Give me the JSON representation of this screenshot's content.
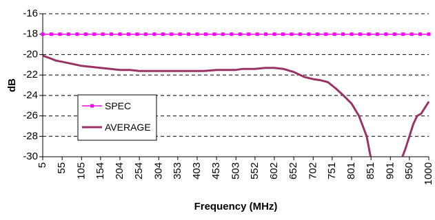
{
  "chart_data": {
    "type": "line",
    "title": "",
    "xlabel": "Frequency (MHz)",
    "ylabel": "dB",
    "ylim": [
      -30,
      -16
    ],
    "y_ticks": [
      -16,
      -18,
      -20,
      -22,
      -24,
      -26,
      -28,
      -30
    ],
    "y_tick_labels": [
      "-16",
      "-18",
      "-20",
      "-22",
      "-24",
      "-26",
      "-28",
      "-30"
    ],
    "x_range": [
      5,
      1000
    ],
    "x_ticks": [
      5,
      55,
      105,
      154,
      204,
      254,
      304,
      353,
      403,
      453,
      503,
      552,
      602,
      652,
      702,
      751,
      801,
      851,
      901,
      950,
      1000
    ],
    "x_tick_labels": [
      "5",
      "55",
      "105",
      "154",
      "204",
      "254",
      "304",
      "353",
      "403",
      "453",
      "503",
      "552",
      "602",
      "652",
      "702",
      "751",
      "801",
      "851",
      "901",
      "950",
      "1000"
    ],
    "grid": "horizontal dashed",
    "legend_position": "left",
    "series": [
      {
        "name": "SPEC",
        "color": "#FF00FF",
        "marker": "square",
        "x": [
          5,
          1000
        ],
        "values": [
          -18,
          -18
        ]
      },
      {
        "name": "AVERAGE",
        "color": "#993366",
        "marker": "none",
        "x": [
          5,
          20,
          40,
          55,
          80,
          105,
          130,
          154,
          180,
          204,
          230,
          254,
          304,
          353,
          403,
          420,
          453,
          503,
          520,
          552,
          580,
          602,
          625,
          652,
          680,
          702,
          720,
          740,
          760,
          780,
          801,
          820,
          840,
          850,
          932,
          940,
          950,
          960,
          970,
          980,
          990,
          1000
        ],
        "values": [
          -20.1,
          -20.3,
          -20.6,
          -20.7,
          -20.9,
          -21.1,
          -21.2,
          -21.3,
          -21.4,
          -21.5,
          -21.5,
          -21.6,
          -21.6,
          -21.6,
          -21.6,
          -21.6,
          -21.5,
          -21.5,
          -21.4,
          -21.4,
          -21.3,
          -21.3,
          -21.4,
          -21.7,
          -22.2,
          -22.4,
          -22.5,
          -22.7,
          -23.3,
          -24.0,
          -24.8,
          -26.0,
          -28.0,
          -30.0,
          -30.0,
          -29.2,
          -28.0,
          -26.8,
          -26.0,
          -25.8,
          -25.2,
          -24.6
        ]
      }
    ]
  }
}
